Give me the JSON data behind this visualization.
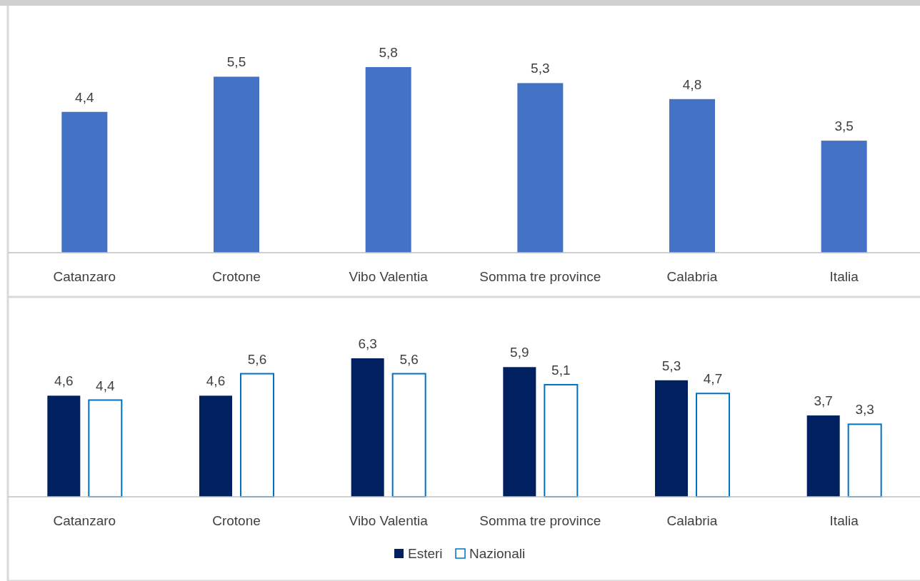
{
  "chart_data": [
    {
      "type": "bar",
      "categories": [
        "Catanzaro",
        "Crotone",
        "Vibo Valentia",
        "Somma tre province",
        "Calabria",
        "Italia"
      ],
      "values": [
        4.4,
        5.5,
        5.8,
        5.3,
        4.8,
        3.5
      ],
      "value_labels": [
        "4,4",
        "5,5",
        "5,8",
        "5,3",
        "4,8",
        "3,5"
      ],
      "color": "#4472c4",
      "tick_labels": "x",
      "legend": false
    },
    {
      "type": "bar",
      "categories": [
        "Catanzaro",
        "Crotone",
        "Vibo Valentia",
        "Somma tre province",
        "Calabria",
        "Italia"
      ],
      "series": [
        {
          "name": "Esteri",
          "color": "#002060",
          "values": [
            4.6,
            4.6,
            6.3,
            5.9,
            5.3,
            3.7
          ],
          "value_labels": [
            "4,6",
            "4,6",
            "6,3",
            "5,9",
            "5,3",
            "3,7"
          ]
        },
        {
          "name": "Nazionali",
          "color": "#0070c0",
          "values": [
            4.4,
            5.6,
            5.6,
            5.1,
            4.7,
            3.3
          ],
          "value_labels": [
            "4,4",
            "5,6",
            "5,6",
            "5,1",
            "4,7",
            "3,3"
          ]
        }
      ],
      "tick_labels": "x",
      "legend": "bottom"
    }
  ]
}
